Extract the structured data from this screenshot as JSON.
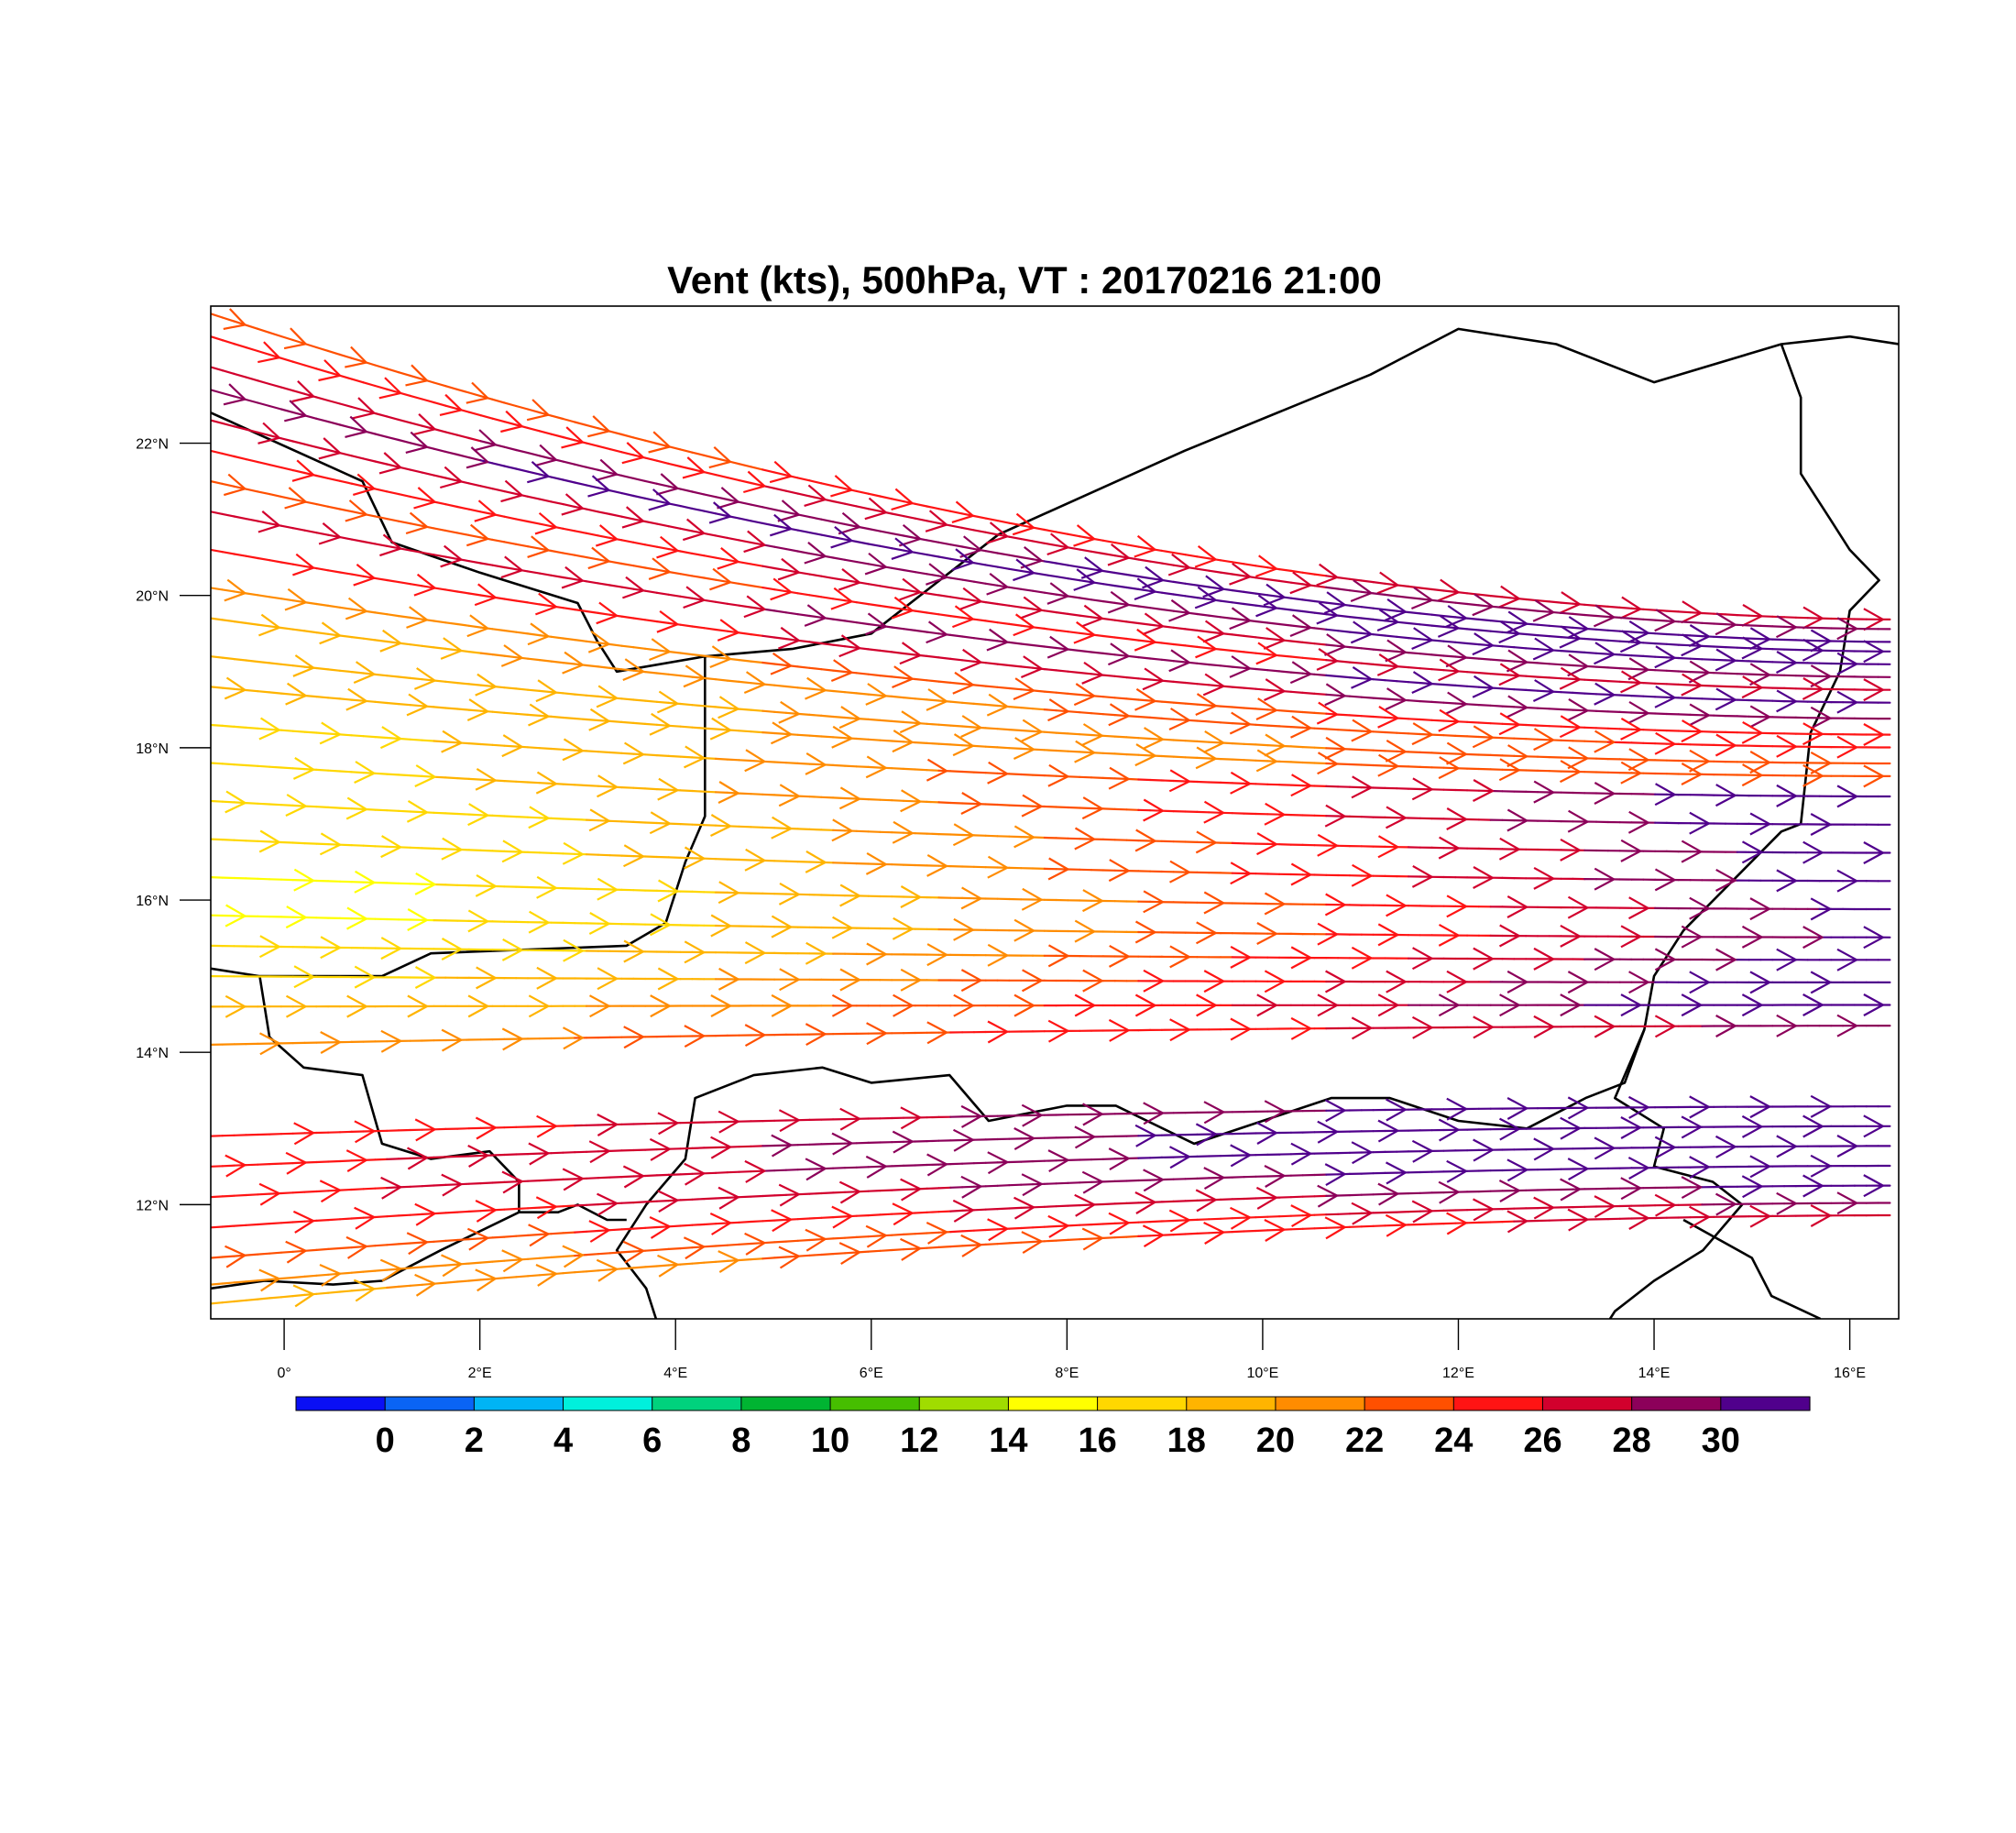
{
  "chart_data": {
    "type": "streamline-map",
    "title": "Vent (kts), 500hPa, VT : 20170216  21:00",
    "variable": "Vent",
    "units": "kts",
    "level": "500hPa",
    "valid_time": "20170216  21:00",
    "x_axis": {
      "range": [
        -0.75,
        16.5
      ],
      "ticks": [
        0,
        2,
        4,
        6,
        8,
        10,
        12,
        14,
        16
      ],
      "tick_labels": [
        "0°",
        "2°E",
        "4°E",
        "6°E",
        "8°E",
        "10°E",
        "12°E",
        "14°E",
        "16°E"
      ]
    },
    "y_axis": {
      "range": [
        10.5,
        23.8
      ],
      "ticks": [
        12,
        14,
        16,
        18,
        20,
        22
      ],
      "tick_labels": [
        "12°N",
        "14°N",
        "16°N",
        "18°N",
        "20°N",
        "22°N"
      ]
    },
    "colorbar": {
      "labels": [
        "0",
        "2",
        "4",
        "6",
        "8",
        "10",
        "12",
        "14",
        "16",
        "18",
        "20",
        "22",
        "24",
        "26",
        "28",
        "30"
      ],
      "colors": [
        "#0a0ff5",
        "#0a64f5",
        "#00b4f5",
        "#00f0dc",
        "#00d27d",
        "#00b432",
        "#46be00",
        "#a0dc00",
        "#ffff00",
        "#ffd700",
        "#ffb400",
        "#ff8c00",
        "#ff5000",
        "#ff1414",
        "#d2002d",
        "#8c005a",
        "#50008c"
      ]
    },
    "streamlines": [
      {
        "lat0": 23.7,
        "spd": 22
      },
      {
        "lat0": 23.4,
        "spd": 24
      },
      {
        "lat0": 23.0,
        "spd": 27
      },
      {
        "lat0": 22.7,
        "spd": 29
      },
      {
        "lat0": 22.3,
        "spd": 26
      },
      {
        "lat0": 21.9,
        "spd": 24
      },
      {
        "lat0": 21.5,
        "spd": 22
      },
      {
        "lat0": 21.1,
        "spd": 26
      },
      {
        "lat0": 20.6,
        "spd": 24
      },
      {
        "lat0": 20.1,
        "spd": 20
      },
      {
        "lat0": 19.7,
        "spd": 19
      },
      {
        "lat0": 19.2,
        "spd": 18
      },
      {
        "lat0": 18.8,
        "spd": 18
      },
      {
        "lat0": 18.3,
        "spd": 17
      },
      {
        "lat0": 17.8,
        "spd": 17
      },
      {
        "lat0": 17.3,
        "spd": 16
      },
      {
        "lat0": 16.8,
        "spd": 16
      },
      {
        "lat0": 16.3,
        "spd": 15
      },
      {
        "lat0": 15.8,
        "spd": 15
      },
      {
        "lat0": 15.4,
        "spd": 16
      },
      {
        "lat0": 15.0,
        "spd": 17
      },
      {
        "lat0": 14.6,
        "spd": 18
      },
      {
        "lat0": 14.1,
        "spd": 20
      },
      {
        "lat0": 12.9,
        "spd": 24
      },
      {
        "lat0": 12.5,
        "spd": 25
      },
      {
        "lat0": 12.1,
        "spd": 25
      },
      {
        "lat0": 11.7,
        "spd": 24
      },
      {
        "lat0": 11.3,
        "spd": 22
      },
      {
        "lat0": 10.95,
        "spd": 20
      },
      {
        "lat0": 10.7,
        "spd": 19
      }
    ],
    "boundaries": [
      [
        [
          -0.75,
          22.4
        ],
        [
          0.8,
          21.5
        ],
        [
          1.1,
          20.7
        ],
        [
          2.0,
          20.3
        ],
        [
          3.0,
          19.9
        ],
        [
          3.2,
          19.4
        ],
        [
          3.4,
          19.0
        ],
        [
          4.3,
          19.2
        ],
        [
          5.2,
          19.3
        ],
        [
          6.0,
          19.5
        ],
        [
          7.3,
          20.8
        ],
        [
          9.2,
          21.9
        ],
        [
          11.1,
          22.9
        ],
        [
          12.0,
          23.5
        ],
        [
          13.0,
          23.3
        ],
        [
          14.0,
          22.8
        ],
        [
          15.3,
          23.3
        ],
        [
          16.0,
          23.4
        ],
        [
          16.5,
          23.3
        ]
      ],
      [
        [
          4.3,
          19.2
        ],
        [
          4.3,
          17.1
        ],
        [
          4.1,
          16.5
        ],
        [
          3.9,
          15.7
        ],
        [
          3.5,
          15.4
        ],
        [
          1.5,
          15.3
        ],
        [
          1.0,
          15.0
        ],
        [
          -0.25,
          15.0
        ],
        [
          -0.75,
          15.1
        ]
      ],
      [
        [
          15.3,
          23.3
        ],
        [
          15.5,
          22.6
        ],
        [
          15.5,
          21.6
        ],
        [
          15.8,
          21.0
        ],
        [
          16.0,
          20.6
        ],
        [
          16.3,
          20.2
        ],
        [
          16.0,
          19.8
        ],
        [
          15.9,
          19.0
        ],
        [
          15.6,
          18.2
        ],
        [
          15.5,
          17.0
        ],
        [
          15.3,
          16.9
        ],
        [
          14.3,
          15.6
        ],
        [
          14.0,
          15.0
        ],
        [
          13.9,
          14.3
        ],
        [
          13.7,
          13.6
        ],
        [
          13.3,
          13.4
        ],
        [
          12.7,
          13.0
        ],
        [
          12.0,
          13.1
        ],
        [
          11.3,
          13.4
        ],
        [
          10.7,
          13.4
        ],
        [
          10.0,
          13.1
        ],
        [
          9.3,
          12.8
        ],
        [
          8.5,
          13.3
        ],
        [
          8.0,
          13.3
        ],
        [
          7.2,
          13.1
        ],
        [
          6.8,
          13.7
        ],
        [
          6.0,
          13.6
        ],
        [
          5.5,
          13.8
        ],
        [
          4.8,
          13.7
        ],
        [
          4.2,
          13.4
        ],
        [
          4.1,
          12.6
        ],
        [
          3.7,
          12.0
        ],
        [
          3.4,
          11.4
        ],
        [
          3.7,
          10.9
        ],
        [
          3.8,
          10.5
        ]
      ],
      [
        [
          -0.25,
          15.0
        ],
        [
          -0.15,
          14.2
        ],
        [
          0.2,
          13.8
        ],
        [
          0.8,
          13.7
        ],
        [
          1.0,
          12.8
        ],
        [
          1.5,
          12.6
        ],
        [
          2.1,
          12.7
        ],
        [
          2.4,
          12.3
        ],
        [
          2.4,
          11.9
        ],
        [
          2.8,
          11.9
        ],
        [
          3.0,
          12.0
        ],
        [
          3.3,
          11.8
        ],
        [
          3.5,
          11.8
        ]
      ],
      [
        [
          2.4,
          11.9
        ],
        [
          1.6,
          11.4
        ],
        [
          1.0,
          11.0
        ],
        [
          0.5,
          10.95
        ],
        [
          -0.2,
          11.0
        ],
        [
          -0.75,
          10.9
        ]
      ],
      [
        [
          13.9,
          14.3
        ],
        [
          13.6,
          13.4
        ],
        [
          14.1,
          13.0
        ],
        [
          14.0,
          12.5
        ],
        [
          14.6,
          12.3
        ],
        [
          14.9,
          12.0
        ],
        [
          14.5,
          11.4
        ],
        [
          14.0,
          11.0
        ],
        [
          13.6,
          10.6
        ],
        [
          13.55,
          10.5
        ]
      ],
      [
        [
          14.3,
          11.8
        ],
        [
          15.0,
          11.3
        ],
        [
          15.2,
          10.8
        ],
        [
          15.7,
          10.5
        ]
      ]
    ]
  }
}
